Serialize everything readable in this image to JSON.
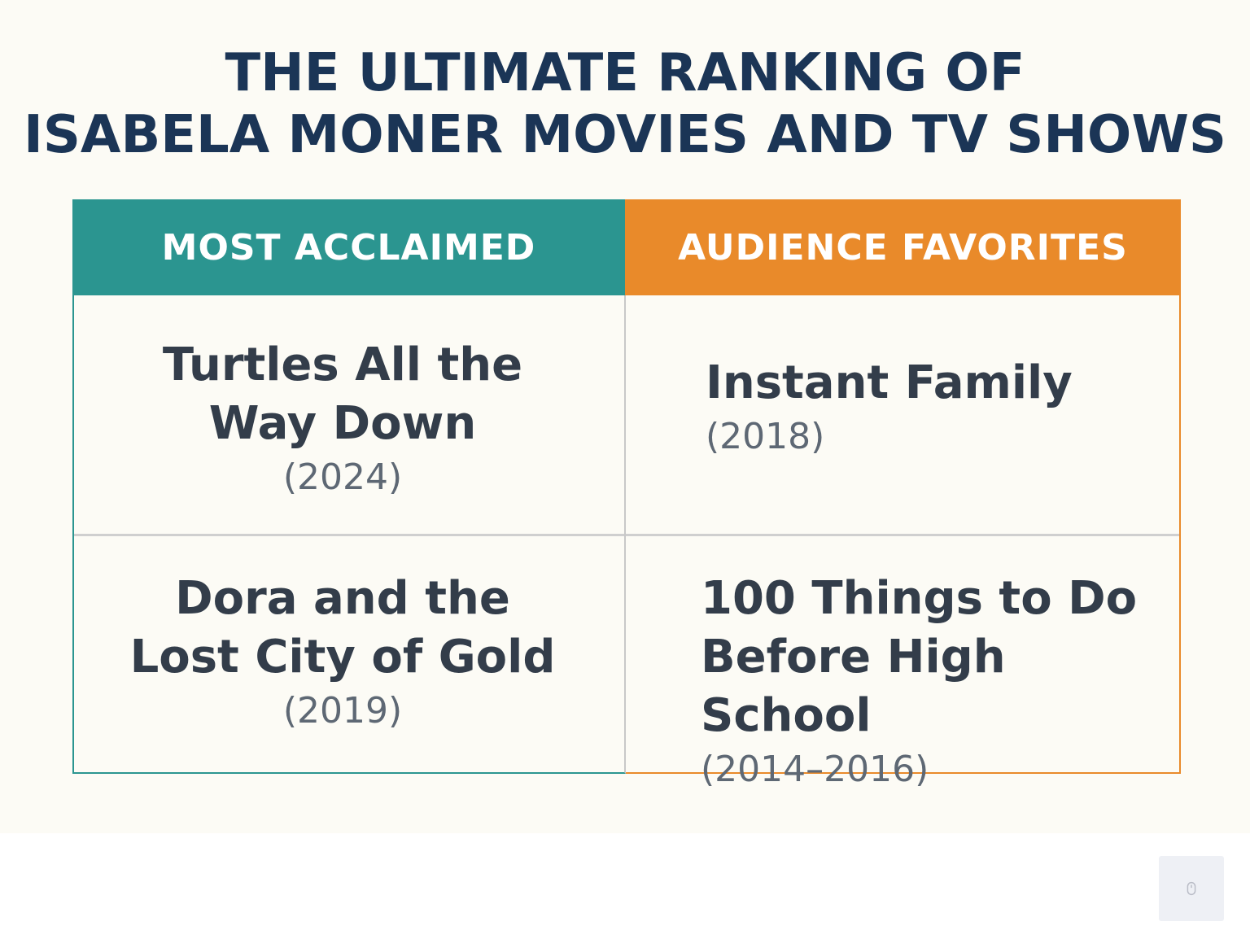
{
  "title": {
    "line1": "THE ULTIMATE RANKING OF",
    "line2": "ISABELA MONER MOVIES AND TV SHOWS"
  },
  "columns": [
    {
      "header": "MOST ACCLAIMED",
      "color": "#2b9590",
      "items": [
        {
          "name_line1": "Turtles All the",
          "name_line2": "Way Down",
          "year": "(2024)"
        },
        {
          "name_line1": "Dora and the",
          "name_line2": "Lost City of Gold",
          "year": "(2019)"
        }
      ]
    },
    {
      "header": "AUDIENCE FAVORITES",
      "color": "#e98a2a",
      "items": [
        {
          "name_line1": "Instant Family",
          "year": "(2018)"
        },
        {
          "name_line1": "100 Things to Do",
          "name_line2": "Before High School",
          "year": "(2014–2016)"
        }
      ]
    }
  ],
  "colors": {
    "title": "#1b3556",
    "background": "#fcfbf5",
    "text": "#333d4a",
    "year_text": "#5e6874"
  },
  "corner_widget": {
    "icon": "mouse-icon"
  }
}
